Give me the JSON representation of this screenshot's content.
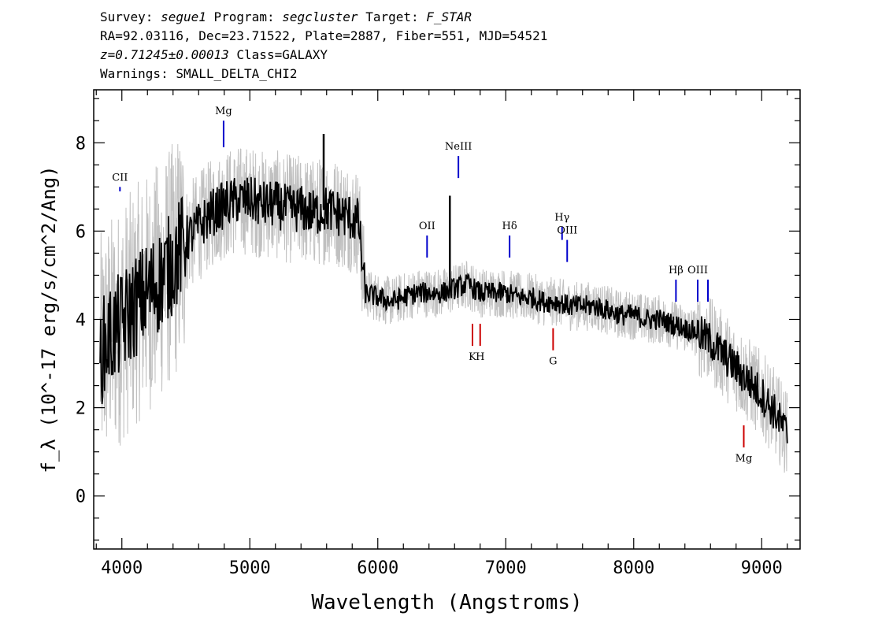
{
  "header": {
    "line1": {
      "survey_label": "Survey:",
      "survey": "segue1",
      "program_label": "Program:",
      "program": "segcluster",
      "target_label": "Target:",
      "target": "F_STAR"
    },
    "line2": "RA=92.03116, Dec=23.71522, Plate=2887, Fiber=551, MJD=54521",
    "line3": {
      "redshift": "z=0.71245±0.00013",
      "class_text": "Class=GALAXY"
    },
    "line4": "Warnings: SMALL_DELTA_CHI2"
  },
  "chart_data": {
    "type": "line",
    "title": "",
    "xlabel": "Wavelength (Angstroms)",
    "ylabel": "f_λ (10^-17 erg/s/cm^2/Ang)",
    "xlim": [
      3780,
      9300
    ],
    "ylim": [
      -1.2,
      9.2
    ],
    "x_ticks": [
      4000,
      5000,
      6000,
      7000,
      8000,
      9000
    ],
    "x_tick_labels": [
      "4000",
      "5000",
      "6000",
      "7000",
      "8000",
      "9000"
    ],
    "y_ticks": [
      0,
      2,
      4,
      6,
      8
    ],
    "y_tick_labels": [
      "0",
      "2",
      "4",
      "6",
      "8"
    ],
    "grid": false,
    "series": [
      {
        "role": "smoothed flux",
        "color": "#000000",
        "x": [
          3830,
          3900,
          4000,
          4100,
          4200,
          4300,
          4400,
          4500,
          4600,
          4700,
          4800,
          4900,
          5000,
          5100,
          5200,
          5300,
          5400,
          5500,
          5600,
          5700,
          5800,
          5850,
          5900,
          6000,
          6100,
          6200,
          6300,
          6400,
          6500,
          6600,
          6700,
          6800,
          6900,
          7000,
          7100,
          7200,
          7300,
          7400,
          7500,
          7600,
          7700,
          7800,
          7900,
          8000,
          8100,
          8200,
          8300,
          8400,
          8500,
          8600,
          8700,
          8800,
          8900,
          9000,
          9100,
          9200
        ],
        "y": [
          3.2,
          3.6,
          3.9,
          4.3,
          4.6,
          4.9,
          5.3,
          5.8,
          6.1,
          6.4,
          6.6,
          6.7,
          6.7,
          6.6,
          6.6,
          6.5,
          6.5,
          6.4,
          6.5,
          6.4,
          6.3,
          6.2,
          4.6,
          4.5,
          4.4,
          4.5,
          4.6,
          4.6,
          4.6,
          4.7,
          4.8,
          4.6,
          4.6,
          4.6,
          4.5,
          4.5,
          4.4,
          4.4,
          4.3,
          4.3,
          4.3,
          4.2,
          4.1,
          4.1,
          4.0,
          4.0,
          3.9,
          3.8,
          3.7,
          3.5,
          3.2,
          2.9,
          2.6,
          2.3,
          1.9,
          1.4
        ]
      }
    ],
    "spikes": [
      {
        "x": 5577,
        "y": 8.2,
        "color": "#000000"
      },
      {
        "x": 6563,
        "y": 6.8,
        "color": "#000000"
      }
    ],
    "noise_band_color": "#c0c0c0",
    "emission_lines": [
      {
        "label": "CII",
        "x": 3985,
        "y_top": 7.0,
        "y_bottom": 6.9,
        "color": "#0000cc"
      },
      {
        "label": "Mg",
        "x": 4795,
        "y_top": 8.5,
        "y_bottom": 7.9,
        "color": "#0000cc"
      },
      {
        "label": "NeIII",
        "x": 6630,
        "y_top": 7.7,
        "y_bottom": 7.2,
        "color": "#0000cc"
      },
      {
        "label": "OII",
        "x": 6385,
        "y_top": 5.9,
        "y_bottom": 5.4,
        "color": "#0000cc"
      },
      {
        "label": "Hδ",
        "x": 7030,
        "y_top": 5.9,
        "y_bottom": 5.4,
        "color": "#0000cc"
      },
      {
        "label": "Hγ",
        "x": 7440,
        "y_top": 6.1,
        "y_bottom": 5.8,
        "color": "#0000cc"
      },
      {
        "label": "OIII",
        "x": 7480,
        "y_top": 5.8,
        "y_bottom": 5.3,
        "color": "#0000cc"
      },
      {
        "label": "Hβ",
        "x": 8330,
        "y_top": 4.9,
        "y_bottom": 4.4,
        "color": "#0000cc"
      },
      {
        "label": "OIII",
        "x": 8500,
        "y_top": 4.9,
        "y_bottom": 4.4,
        "color": "#0000cc"
      },
      {
        "label": "",
        "x": 8580,
        "y_top": 4.9,
        "y_bottom": 4.4,
        "color": "#0000cc"
      }
    ],
    "absorption_lines": [
      {
        "label": "K",
        "x": 6740,
        "y_top": 3.9,
        "y_bottom": 3.4,
        "color": "#cc0000"
      },
      {
        "label": "H",
        "x": 6800,
        "y_top": 3.9,
        "y_bottom": 3.4,
        "color": "#cc0000"
      },
      {
        "label": "G",
        "x": 7370,
        "y_top": 3.8,
        "y_bottom": 3.3,
        "color": "#cc0000"
      },
      {
        "label": "Mg",
        "x": 8860,
        "y_top": 1.6,
        "y_bottom": 1.1,
        "color": "#cc0000"
      }
    ]
  }
}
